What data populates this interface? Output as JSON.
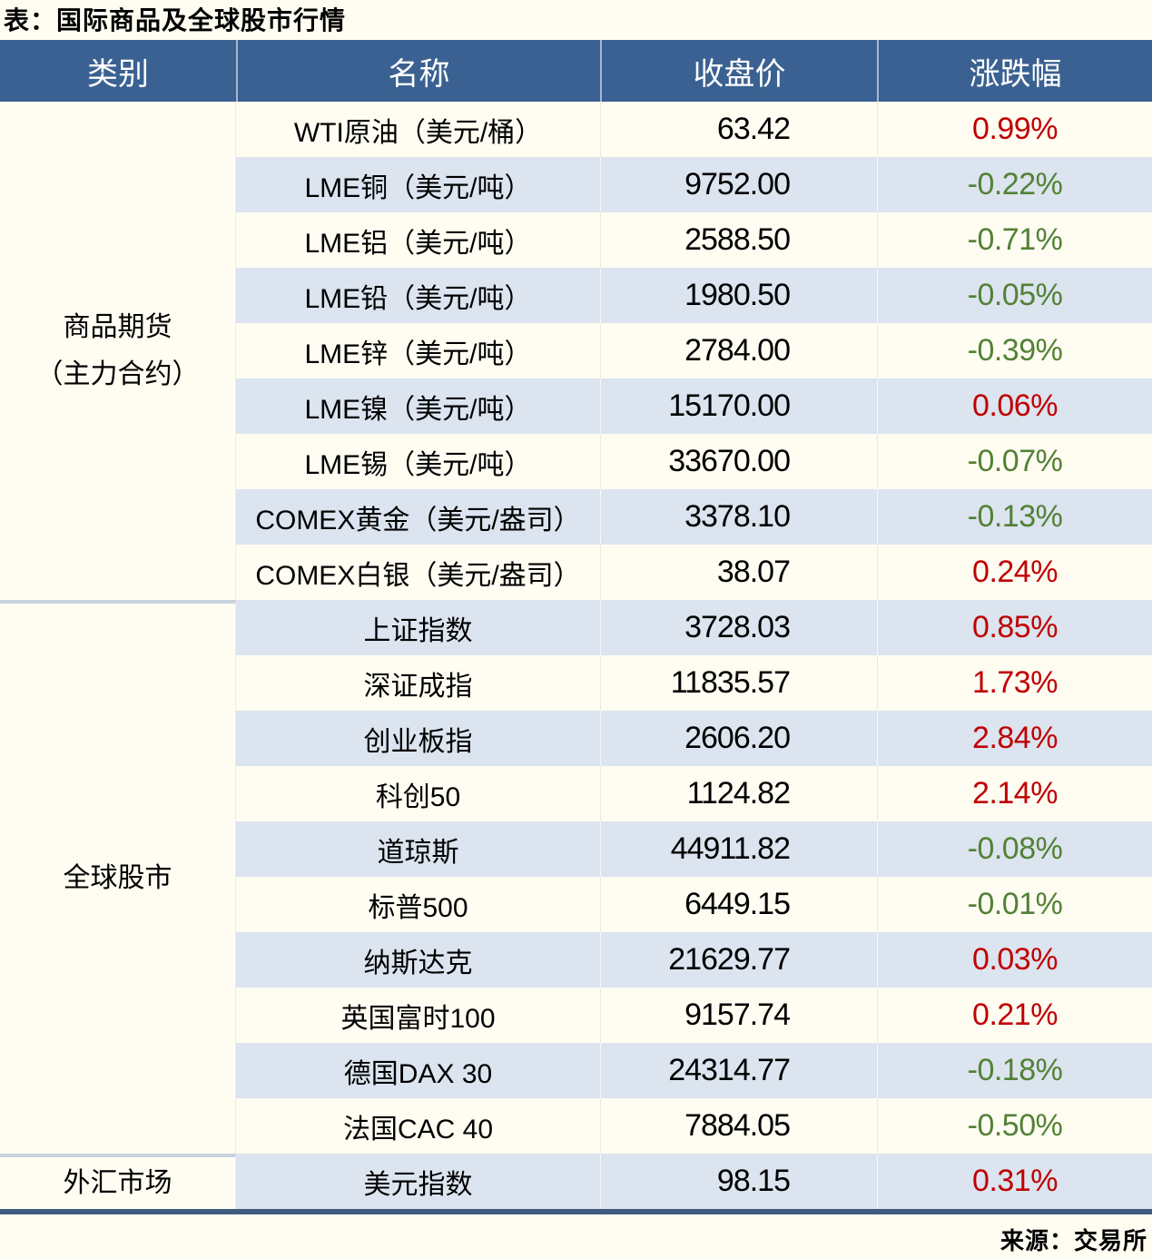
{
  "chart_data": {
    "type": "table",
    "title": "表：国际商品及全球股市行情",
    "columns": [
      "类别",
      "名称",
      "收盘价",
      "涨跌幅"
    ],
    "sections": [
      {
        "category_lines": [
          "商品期货",
          "（主力合约）"
        ],
        "rows": [
          {
            "name": "WTI原油（美元/桶）",
            "close": "63.42",
            "change": "0.99%",
            "dir": "up"
          },
          {
            "name": "LME铜（美元/吨）",
            "close": "9752.00",
            "change": "-0.22%",
            "dir": "down"
          },
          {
            "name": "LME铝（美元/吨）",
            "close": "2588.50",
            "change": "-0.71%",
            "dir": "down"
          },
          {
            "name": "LME铅（美元/吨）",
            "close": "1980.50",
            "change": "-0.05%",
            "dir": "down"
          },
          {
            "name": "LME锌（美元/吨）",
            "close": "2784.00",
            "change": "-0.39%",
            "dir": "down"
          },
          {
            "name": "LME镍（美元/吨）",
            "close": "15170.00",
            "change": "0.06%",
            "dir": "up"
          },
          {
            "name": "LME锡（美元/吨）",
            "close": "33670.00",
            "change": "-0.07%",
            "dir": "down"
          },
          {
            "name": "COMEX黄金（美元/盎司）",
            "close": "3378.10",
            "change": "-0.13%",
            "dir": "down"
          },
          {
            "name": "COMEX白银（美元/盎司）",
            "close": "38.07",
            "change": "0.24%",
            "dir": "up"
          }
        ]
      },
      {
        "category_lines": [
          "全球股市"
        ],
        "rows": [
          {
            "name": "上证指数",
            "close": "3728.03",
            "change": "0.85%",
            "dir": "up"
          },
          {
            "name": "深证成指",
            "close": "11835.57",
            "change": "1.73%",
            "dir": "up"
          },
          {
            "name": "创业板指",
            "close": "2606.20",
            "change": "2.84%",
            "dir": "up"
          },
          {
            "name": "科创50",
            "close": "1124.82",
            "change": "2.14%",
            "dir": "up"
          },
          {
            "name": "道琼斯",
            "close": "44911.82",
            "change": "-0.08%",
            "dir": "down"
          },
          {
            "name": "标普500",
            "close": "6449.15",
            "change": "-0.01%",
            "dir": "down"
          },
          {
            "name": "纳斯达克",
            "close": "21629.77",
            "change": "0.03%",
            "dir": "up"
          },
          {
            "name": "英国富时100",
            "close": "9157.74",
            "change": "0.21%",
            "dir": "up"
          },
          {
            "name": "德国DAX 30",
            "close": "24314.77",
            "change": "-0.18%",
            "dir": "down"
          },
          {
            "name": "法国CAC 40",
            "close": "7884.05",
            "change": "-0.50%",
            "dir": "down"
          }
        ]
      },
      {
        "category_lines": [
          "外汇市场"
        ],
        "rows": [
          {
            "name": "美元指数",
            "close": "98.15",
            "change": "0.31%",
            "dir": "up"
          }
        ]
      }
    ],
    "source_note": "来源：交易所"
  },
  "colors": {
    "page_bg": "#FFFDF2",
    "header_bg": "#3A6191",
    "header_text": "#FFFFFF",
    "stripe_bg": "#DBE4EF",
    "up_red": "#C00000",
    "down_green": "#538135",
    "section_divider": "#C7D2DF",
    "bottom_border": "#3E5C80",
    "body_text": "#000000"
  }
}
